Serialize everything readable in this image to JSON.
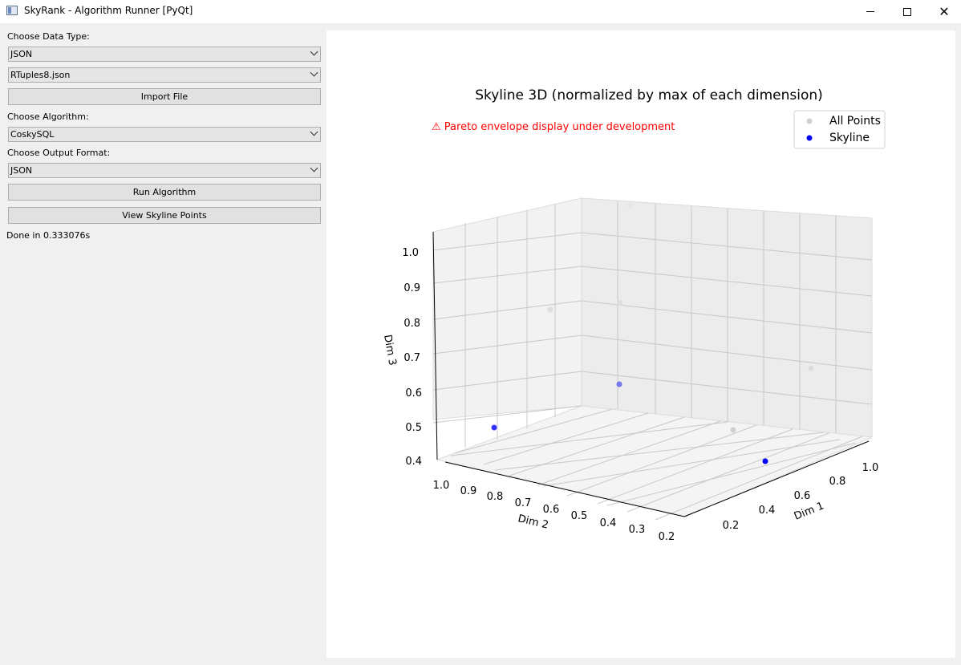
{
  "window": {
    "title": "SkyRank - Algorithm Runner [PyQt]",
    "minimize_glyph": "",
    "maximize_glyph": "",
    "close_glyph": "✕"
  },
  "controls": {
    "data_type_label": "Choose Data Type:",
    "data_type_value": "JSON",
    "file_value": "RTuples8.json",
    "import_button": "Import File",
    "algorithm_label": "Choose Algorithm:",
    "algorithm_value": "CoskySQL",
    "output_format_label": "Choose Output Format:",
    "output_format_value": "JSON",
    "run_button": "Run Algorithm",
    "view_button": "View Skyline Points",
    "status": "Done in 0.333076s"
  },
  "chart_data": {
    "type": "scatter",
    "title": "Skyline 3D (normalized by max of each dimension)",
    "warning": "⚠ Pareto envelope display under development",
    "xlabel": "Dim 1",
    "ylabel": "Dim 2",
    "zlabel": "Dim 3",
    "x_ticks": [
      "0.2",
      "0.4",
      "0.6",
      "0.8",
      "1.0"
    ],
    "y_ticks": [
      "1.0",
      "0.9",
      "0.8",
      "0.7",
      "0.6",
      "0.5",
      "0.4",
      "0.3",
      "0.2"
    ],
    "z_ticks": [
      "0.4",
      "0.5",
      "0.6",
      "0.7",
      "0.8",
      "0.9",
      "1.0"
    ],
    "legend": [
      {
        "name": "All Points",
        "color": "#d0d0d0"
      },
      {
        "name": "Skyline",
        "color": "#0000ff"
      }
    ],
    "legend_position": "top-right",
    "grid": true,
    "series": [
      {
        "name": "All Points",
        "color": "#cccccc",
        "points_count": 5
      },
      {
        "name": "Skyline",
        "color": "#0000ff",
        "points_count": 3
      }
    ],
    "colors": {
      "warning": "#ff0000",
      "skyline": "#0000ff",
      "all_points": "#cccccc"
    }
  }
}
